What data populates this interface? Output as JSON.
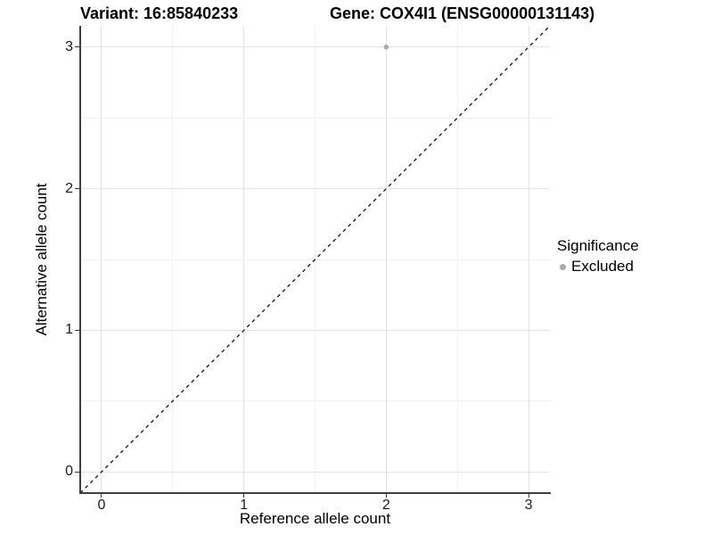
{
  "chart_data": {
    "type": "scatter",
    "title_left": "Variant: 16:85840233",
    "title_right": "Gene: COX4I1 (ENSG00000131143)",
    "xlabel": "Reference allele count",
    "ylabel": "Alternative allele count",
    "xlim": [
      -0.15,
      3.15
    ],
    "ylim": [
      -0.15,
      3.15
    ],
    "x_ticks": [
      "0",
      "1",
      "2",
      "3"
    ],
    "y_ticks": [
      "0",
      "1",
      "2",
      "3"
    ],
    "x_tick_values": [
      0,
      1,
      2,
      3
    ],
    "y_tick_values": [
      0,
      1,
      2,
      3
    ],
    "minor_grid_values": [
      0.5,
      1.5,
      2.5
    ],
    "grid": "major and minor gridlines, white panel background",
    "points": [
      {
        "x": 2,
        "y": 3,
        "series": "Excluded"
      }
    ],
    "reference_line": {
      "style": "dashed",
      "equation": "y = x",
      "from": [
        -0.15,
        -0.15
      ],
      "to": [
        3.15,
        3.15
      ]
    },
    "legend": {
      "title": "Significance",
      "position": "right",
      "entries": [
        {
          "label": "Excluded",
          "color": "#a9a9a9"
        }
      ]
    },
    "colors": {
      "point": "#a9a9a9",
      "axis_line": "#404040",
      "major_grid": "#e3e3e3",
      "minor_grid": "#f0f0f0",
      "reference_line": "#000000",
      "text": "#000000",
      "background": "#ffffff"
    }
  }
}
